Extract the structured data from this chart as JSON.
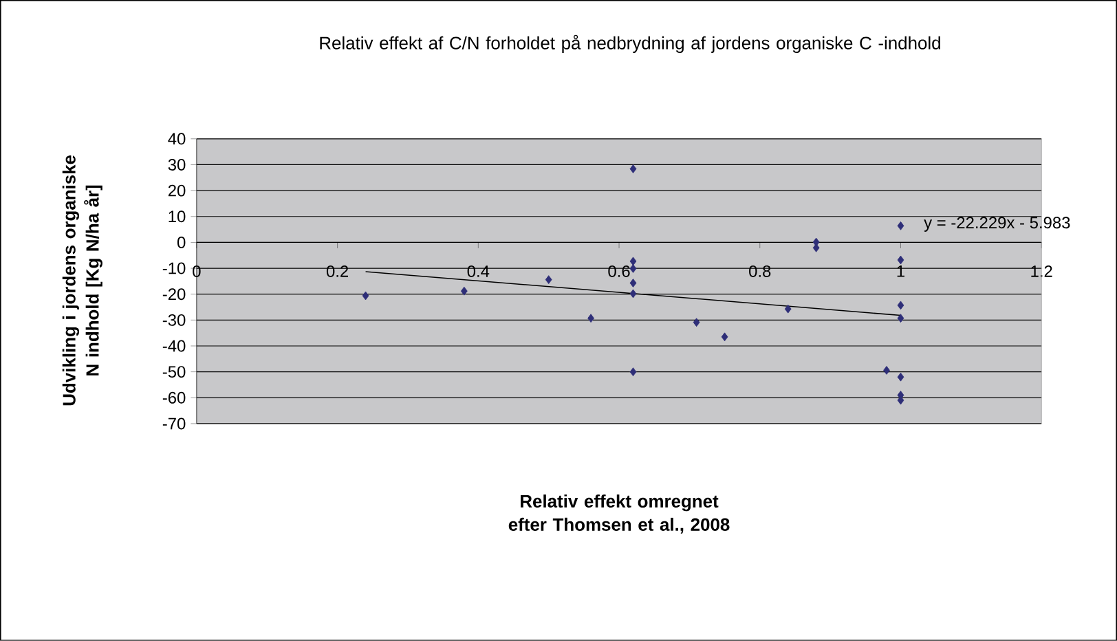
{
  "chart_data": {
    "type": "scatter",
    "title": "Relativ effekt af C/N forholdet på nedbrydning af jordens organiske C -indhold",
    "xlabel": "Relativ effekt omregnet efter Thomsen et al., 2008",
    "ylabel": "Udvikling i jordens organiske N indhold [Kg N/ha år]",
    "series": [
      {
        "color": "#2e2e78",
        "marker": "diamond",
        "x": [
          0.24,
          0.38,
          0.5,
          0.56,
          0.62,
          0.62,
          0.62,
          0.62,
          0.62,
          0.62,
          0.71,
          0.75,
          0.84,
          0.88,
          0.88,
          1.0,
          1.0,
          1.0,
          1.0,
          0.98,
          1.0,
          1.0,
          1.0
        ],
        "values": [
          -20.6,
          -18.8,
          -14.4,
          -29.3,
          28.4,
          -7.3,
          -10.1,
          -15.7,
          -19.8,
          -50,
          -30.9,
          -36.5,
          -25.7,
          0.1,
          -2.1,
          6.4,
          -6.8,
          -24.3,
          -29.3,
          -49.4,
          -52,
          -59,
          -61
        ]
      },
      {
        "type": "line",
        "color": "#000000",
        "marker": "none",
        "x": [
          0.24,
          1.0
        ],
        "values": [
          -11.3,
          -28.2
        ]
      }
    ],
    "annotations": [
      "y = -22.229x - 5.983"
    ],
    "xlim": [
      0,
      1.2
    ],
    "xticks": [
      0,
      0.2,
      0.4,
      0.6,
      0.8,
      1,
      1.2
    ],
    "ylim": [
      -70,
      40
    ],
    "yticks": [
      -70,
      -60,
      -50,
      -40,
      -30,
      -20,
      -10,
      0,
      10,
      20,
      30,
      40
    ],
    "grid": "y"
  }
}
